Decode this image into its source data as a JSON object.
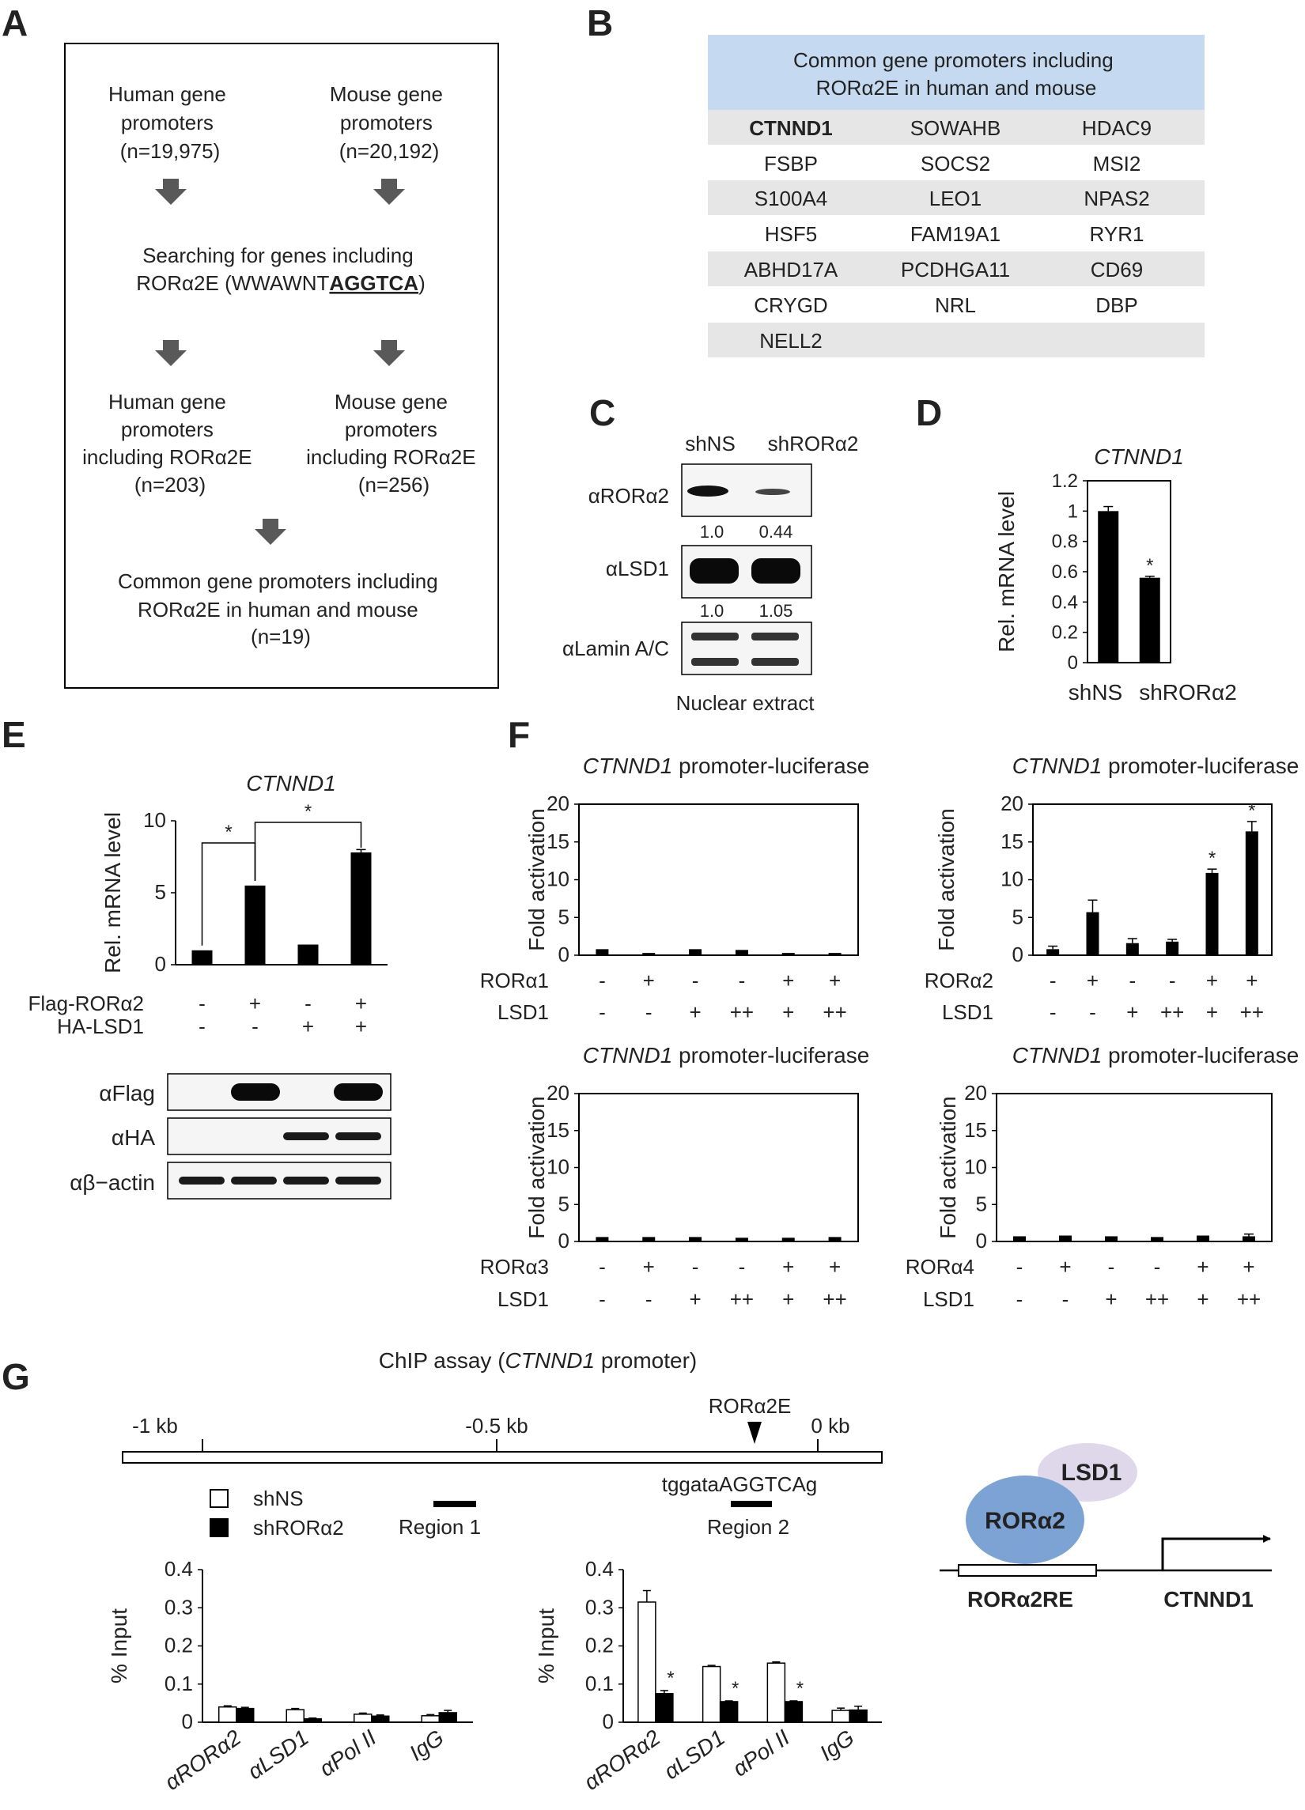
{
  "panel_letters": {
    "A": "A",
    "B": "B",
    "C": "C",
    "D": "D",
    "E": "E",
    "F": "F",
    "G": "G"
  },
  "panelA": {
    "human_title": [
      "Human gene",
      "promoters",
      "(n=19,975)"
    ],
    "mouse_title": [
      "Mouse gene",
      "promoters",
      "(n=20,192)"
    ],
    "search_line1": "Searching for genes including",
    "search_prefix": "RORα2E (WWAWNT",
    "search_motif": "AGGTCA",
    "search_suffix": ")",
    "human_result": [
      "Human gene",
      "promoters",
      "including RORα2E",
      "(n=203)"
    ],
    "mouse_result": [
      "Mouse gene",
      "promoters",
      "including RORα2E",
      "(n=256)"
    ],
    "common": [
      "Common gene promoters including",
      "RORα2E in human and mouse",
      "(n=19)"
    ]
  },
  "panelB": {
    "header": [
      "Common gene promoters including",
      "RORα2E in human and mouse"
    ],
    "rows": [
      [
        "CTNND1",
        "SOWAHB",
        "HDAC9"
      ],
      [
        "FSBP",
        "SOCS2",
        "MSI2"
      ],
      [
        "S100A4",
        "LEO1",
        "NPAS2"
      ],
      [
        "HSF5",
        "FAM19A1",
        "RYR1"
      ],
      [
        "ABHD17A",
        "PCDHGA11",
        "CD69"
      ],
      [
        "CRYGD",
        "NRL",
        "DBP"
      ],
      [
        "NELL2",
        "",
        ""
      ]
    ]
  },
  "panelC": {
    "lanes": [
      "shNS",
      "shRORα2"
    ],
    "blots": [
      {
        "label": "αRORα2",
        "quant": [
          "1.0",
          "0.44"
        ]
      },
      {
        "label": "αLSD1",
        "quant": [
          "1.0",
          "1.05"
        ]
      },
      {
        "label": "αLamin A/C",
        "quant": []
      }
    ],
    "footer": "Nuclear extract"
  },
  "panelE_blots": [
    "αFlag",
    "αHA",
    "αβ−actin"
  ],
  "panelG_map": {
    "title_prefix": "ChIP assay  (",
    "title_gene": "CTNND1",
    "title_suffix": " promoter)",
    "ticks": [
      "-1 kb",
      "-0.5 kb",
      "0 kb"
    ],
    "element": "RORα2E",
    "sequence": "tggataAGGTCAg",
    "region1": "Region 1",
    "region2": "Region 2",
    "legend": [
      "shNS",
      "shRORα2"
    ]
  },
  "model": {
    "factor": "RORα2",
    "cofactor": "LSD1",
    "element": "RORα2RE",
    "gene": "CTNND1"
  },
  "colors": {
    "bar_dark": "#000000",
    "bar_light": "#ffffff",
    "table_header": "#c5d9f1",
    "table_stripe": "#e6e6e6",
    "ror_node": "#7da3d4",
    "lsd1_node": "#ded8ea",
    "arrow_gray": "#666666"
  },
  "chart_data": [
    {
      "id": "D",
      "type": "bar",
      "title": "CTNND1",
      "categories": [
        "shNS",
        "shRORα2"
      ],
      "values": [
        1.0,
        0.56
      ],
      "errors": [
        0.03,
        0.01
      ],
      "significance": [
        "",
        "*"
      ],
      "ylabel": "Rel. mRNA  level",
      "ylim": [
        0,
        1.2
      ],
      "yticks": [
        "0",
        "0.2",
        "0.4",
        "0.6",
        "0.8",
        "1",
        "1.2"
      ]
    },
    {
      "id": "E",
      "type": "bar",
      "title": "CTNND1",
      "categories": [
        "1",
        "2",
        "3",
        "4"
      ],
      "values": [
        1.0,
        5.5,
        1.4,
        7.8
      ],
      "errors": [
        0,
        0,
        0,
        0.2
      ],
      "ylabel": "Rel. mRNA level",
      "ylim": [
        0,
        10
      ],
      "yticks": [
        "0",
        "5",
        "10"
      ],
      "conditions": [
        {
          "label": "Flag-RORα2",
          "signs": [
            "-",
            "+",
            "-",
            "+"
          ]
        },
        {
          "label": "HA-LSD1",
          "signs": [
            "-",
            "-",
            "+",
            "+"
          ]
        }
      ],
      "significance_brackets": [
        {
          "from": 0,
          "to": 1,
          "label": "*"
        },
        {
          "from": 1,
          "to": 3,
          "label": "*"
        }
      ]
    },
    {
      "id": "F1",
      "type": "bar",
      "title": "CTNND1 promoter-luciferase",
      "ylabel": "Fold activation",
      "ylim": [
        0,
        20
      ],
      "yticks": [
        "0",
        "5",
        "10",
        "15",
        "20"
      ],
      "categories": [
        "1",
        "2",
        "3",
        "4",
        "5",
        "6"
      ],
      "values": [
        0.8,
        0.3,
        0.8,
        0.7,
        0.3,
        0.3
      ],
      "errors": [
        0,
        0,
        0,
        0,
        0,
        0
      ],
      "significance": [
        "",
        "",
        "",
        "",
        "",
        ""
      ],
      "conditions": [
        {
          "label": "RORα1",
          "signs": [
            "-",
            "+",
            "-",
            "-",
            "+",
            "+"
          ]
        },
        {
          "label": "LSD1",
          "signs": [
            "-",
            "-",
            "+",
            "++",
            "+",
            "++"
          ]
        }
      ]
    },
    {
      "id": "F2",
      "type": "bar",
      "title": "CTNND1 promoter-luciferase",
      "ylabel": "Fold activation",
      "ylim": [
        0,
        20
      ],
      "yticks": [
        "0",
        "5",
        "10",
        "15",
        "20"
      ],
      "categories": [
        "1",
        "2",
        "3",
        "4",
        "5",
        "6"
      ],
      "values": [
        0.8,
        5.7,
        1.6,
        1.8,
        10.9,
        16.4
      ],
      "errors": [
        0.4,
        1.6,
        0.6,
        0.3,
        0.5,
        1.3
      ],
      "significance": [
        "",
        "",
        "",
        "",
        "*",
        "*"
      ],
      "conditions": [
        {
          "label": "RORα2",
          "signs": [
            "-",
            "+",
            "-",
            "-",
            "+",
            "+"
          ]
        },
        {
          "label": "LSD1",
          "signs": [
            "-",
            "-",
            "+",
            "++",
            "+",
            "++"
          ]
        }
      ]
    },
    {
      "id": "F3",
      "type": "bar",
      "title": "CTNND1 promoter-luciferase",
      "ylabel": "Fold activation",
      "ylim": [
        0,
        20
      ],
      "yticks": [
        "0",
        "5",
        "10",
        "15",
        "20"
      ],
      "categories": [
        "1",
        "2",
        "3",
        "4",
        "5",
        "6"
      ],
      "values": [
        0.6,
        0.6,
        0.6,
        0.5,
        0.5,
        0.6
      ],
      "errors": [
        0,
        0,
        0,
        0,
        0,
        0
      ],
      "significance": [
        "",
        "",
        "",
        "",
        "",
        ""
      ],
      "conditions": [
        {
          "label": "RORα3",
          "signs": [
            "-",
            "+",
            "-",
            "-",
            "+",
            "+"
          ]
        },
        {
          "label": "LSD1",
          "signs": [
            "-",
            "-",
            "+",
            "++",
            "+",
            "++"
          ]
        }
      ]
    },
    {
      "id": "F4",
      "type": "bar",
      "title": "CTNND1 promoter-luciferase",
      "ylabel": "Fold activation",
      "ylim": [
        0,
        20
      ],
      "yticks": [
        "0",
        "5",
        "10",
        "15",
        "20"
      ],
      "categories": [
        "1",
        "2",
        "3",
        "4",
        "5",
        "6"
      ],
      "values": [
        0.7,
        0.8,
        0.7,
        0.6,
        0.8,
        0.7
      ],
      "errors": [
        0,
        0,
        0,
        0,
        0,
        0.3
      ],
      "significance": [
        "",
        "",
        "",
        "",
        "",
        ""
      ],
      "conditions": [
        {
          "label": "RORα4",
          "signs": [
            "-",
            "+",
            "-",
            "-",
            "+",
            "+"
          ]
        },
        {
          "label": "LSD1",
          "signs": [
            "-",
            "-",
            "+",
            "++",
            "+",
            "++"
          ]
        }
      ]
    },
    {
      "id": "G1",
      "type": "bar",
      "ylabel": "% Input",
      "ylim": [
        0,
        0.4
      ],
      "yticks": [
        "0",
        "0.1",
        "0.2",
        "0.3",
        "0.4"
      ],
      "categories": [
        "αRORα2",
        "αLSD1",
        "αPol II",
        "IgG"
      ],
      "series": [
        {
          "name": "shNS",
          "values": [
            0.04,
            0.033,
            0.021,
            0.017
          ],
          "errors": [
            0.003,
            0.003,
            0.003,
            0.003
          ]
        },
        {
          "name": "shRORα2",
          "values": [
            0.036,
            0.009,
            0.016,
            0.025
          ],
          "errors": [
            0.003,
            0.002,
            0.003,
            0.006
          ]
        }
      ]
    },
    {
      "id": "G2",
      "type": "bar",
      "ylabel": "% Input",
      "ylim": [
        0,
        0.4
      ],
      "yticks": [
        "0",
        "0.1",
        "0.2",
        "0.3",
        "0.4"
      ],
      "categories": [
        "αRORα2",
        "αLSD1",
        "αPol II",
        "IgG"
      ],
      "series": [
        {
          "name": "shNS",
          "values": [
            0.315,
            0.146,
            0.155,
            0.031
          ],
          "errors": [
            0.03,
            0.003,
            0.003,
            0.006
          ]
        },
        {
          "name": "shRORα2",
          "values": [
            0.075,
            0.054,
            0.054,
            0.032
          ],
          "errors": [
            0.008,
            0.002,
            0.002,
            0.01
          ]
        }
      ],
      "significance_shRORα2": [
        "*",
        "*",
        "*",
        ""
      ]
    }
  ]
}
